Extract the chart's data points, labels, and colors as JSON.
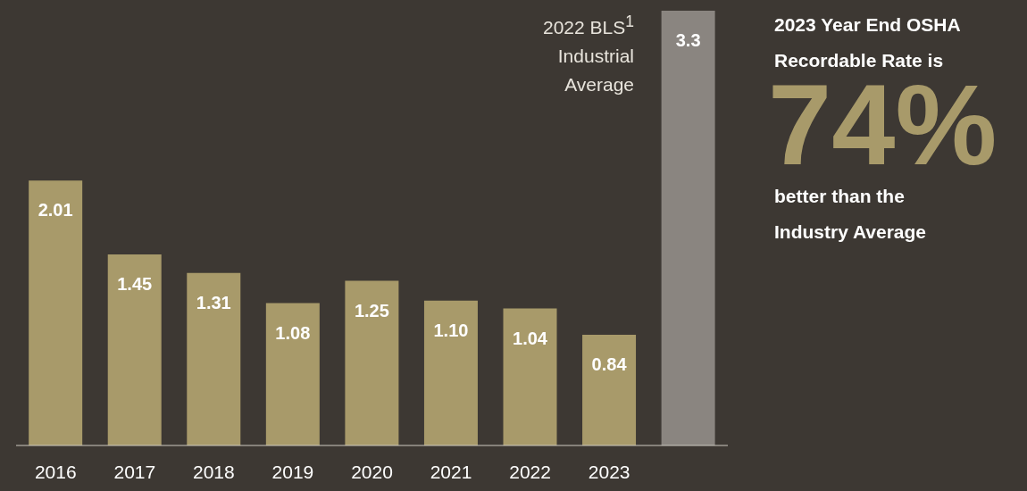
{
  "chart_data": {
    "type": "bar",
    "categories": [
      "2016",
      "2017",
      "2018",
      "2019",
      "2020",
      "2021",
      "2022",
      "2023",
      null
    ],
    "values": [
      2.01,
      1.45,
      1.31,
      1.08,
      1.25,
      1.1,
      1.04,
      0.84,
      3.3
    ],
    "value_labels": [
      "2.01",
      "1.45",
      "1.31",
      "1.08",
      "1.25",
      "1.10",
      "1.04",
      "0.84",
      "3.3"
    ],
    "colors": [
      "#a89a6a",
      "#a89a6a",
      "#a89a6a",
      "#a89a6a",
      "#a89a6a",
      "#a89a6a",
      "#a89a6a",
      "#a89a6a",
      "#8a8580"
    ],
    "annotations": [
      "2022 BLS$^{1}$ Industrial Average",
      "2023 Year End OSHA Recordable Rate is",
      "74%",
      "better than the Industry Average"
    ]
  }
}
